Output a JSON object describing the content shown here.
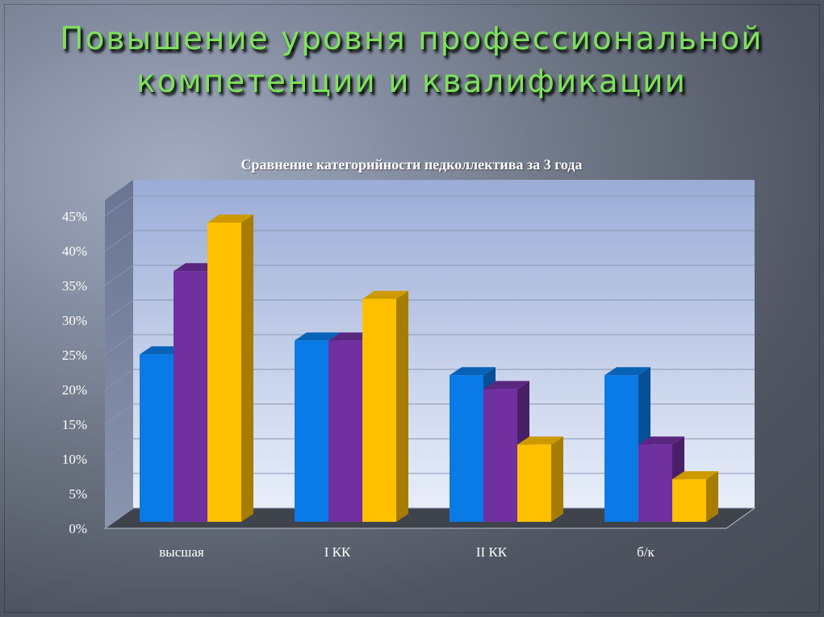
{
  "slide": {
    "title": "Повышение уровня профессиональной компетенции и квалификации"
  },
  "chart_data": {
    "type": "bar",
    "title": "Сравнение категорийности педколлектива за 3 года",
    "categories": [
      "высшая",
      "I КК",
      "II КК",
      "б/к"
    ],
    "series": [
      {
        "values": [
          26,
          28,
          23,
          23
        ],
        "color": "#0a7ae6"
      },
      {
        "values": [
          38,
          28,
          21,
          13
        ],
        "color": "#7030a0"
      },
      {
        "values": [
          45,
          34,
          13,
          8
        ],
        "color": "#ffc000"
      }
    ],
    "y_ticks": [
      "0%",
      "5%",
      "10%",
      "15%",
      "20%",
      "25%",
      "30%",
      "35%",
      "40%",
      "45%"
    ],
    "ylim": [
      0,
      45
    ],
    "grid": true,
    "three_d": true,
    "legend": "none"
  }
}
